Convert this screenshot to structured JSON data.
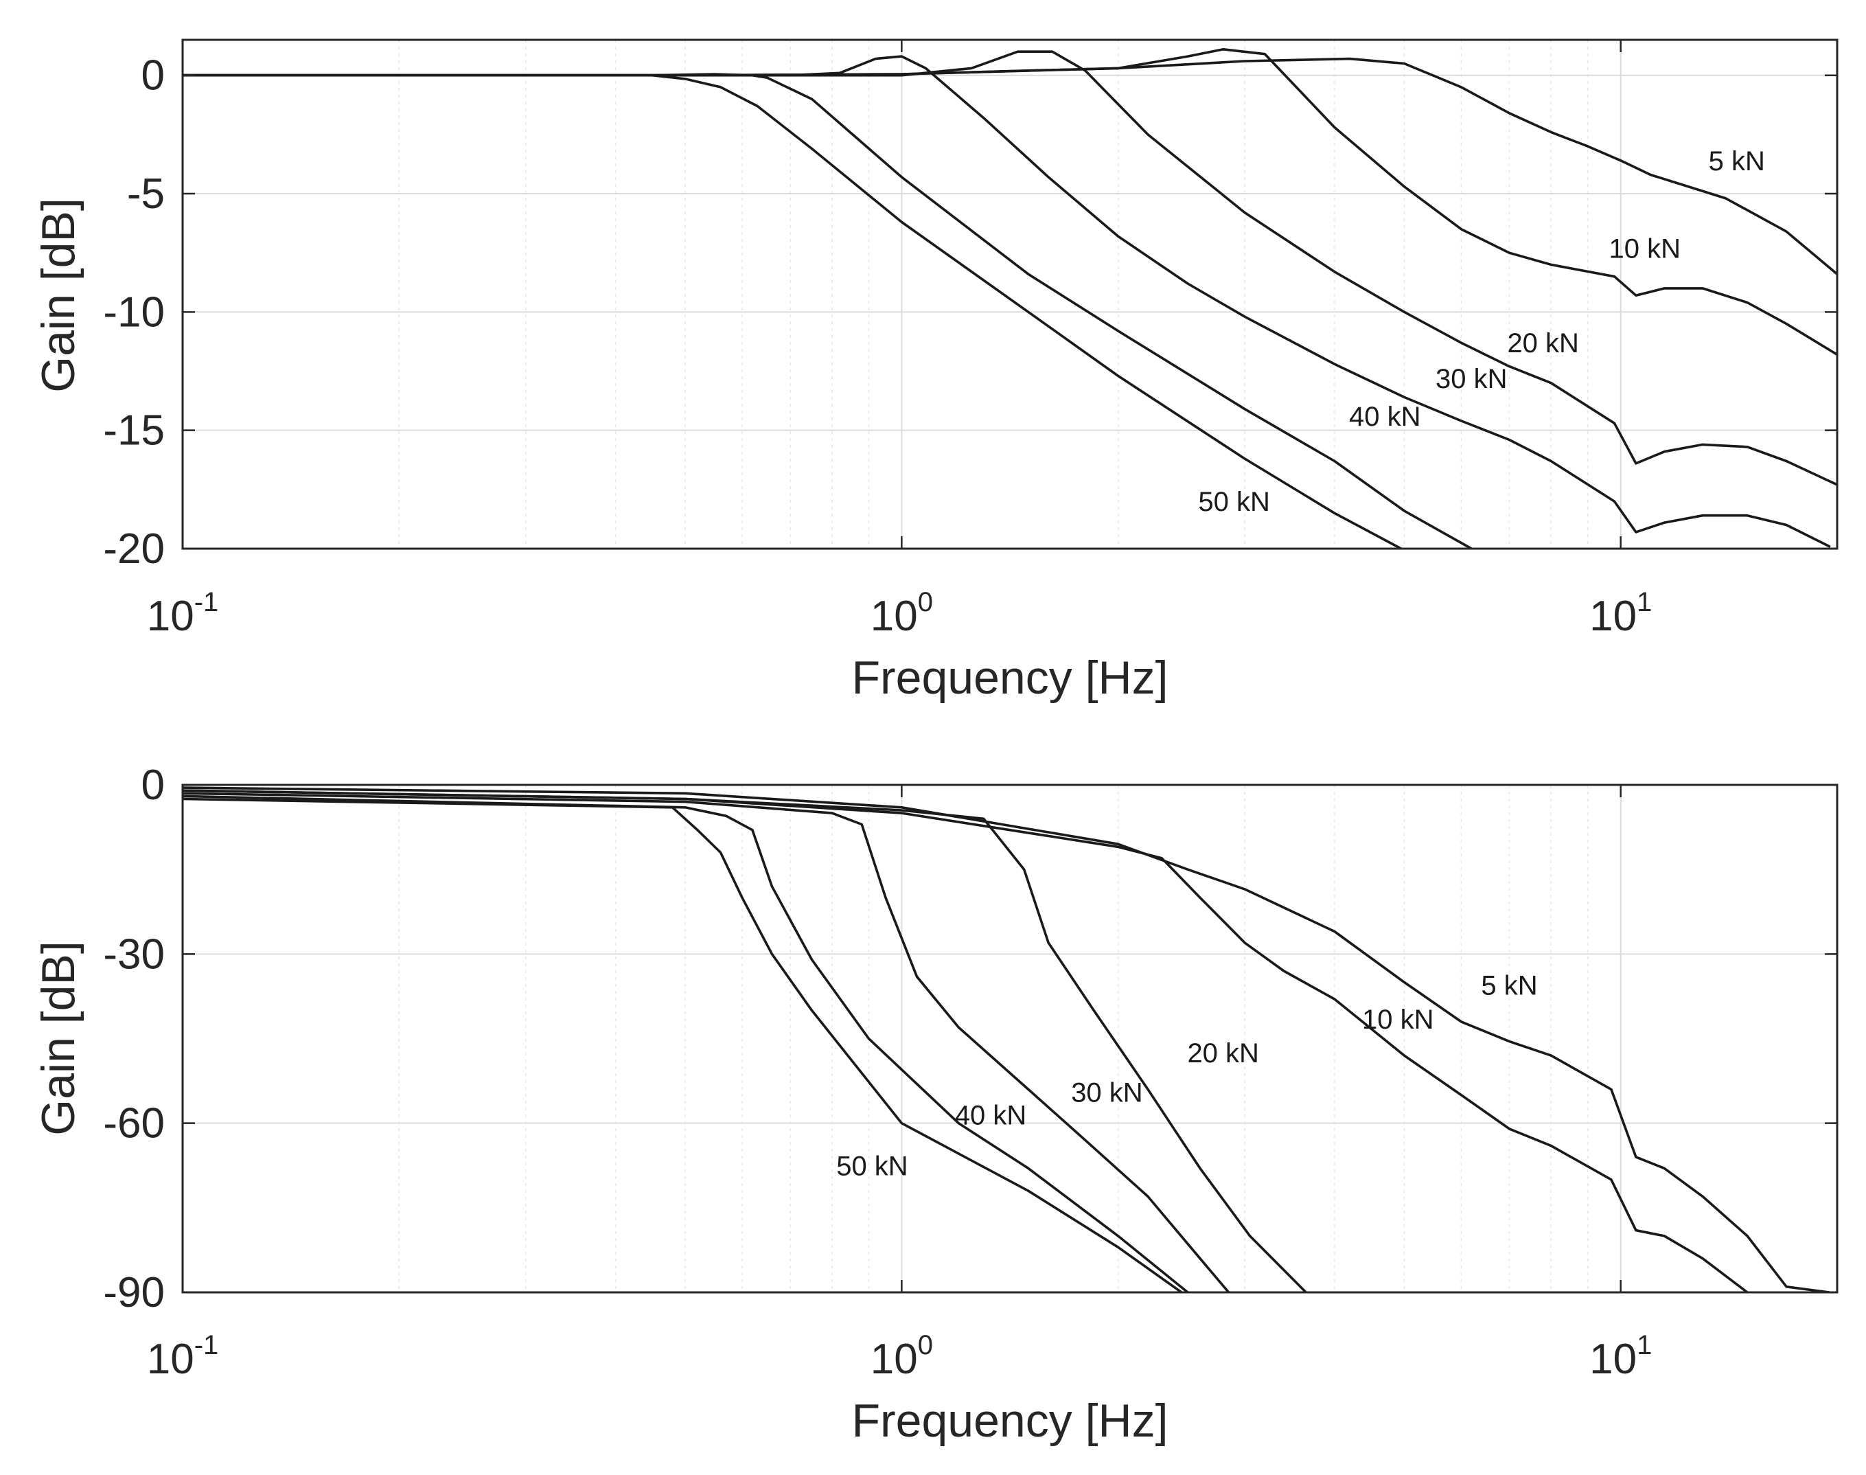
{
  "chart_data": [
    {
      "type": "line",
      "title": "",
      "xlabel": "Frequency [Hz]",
      "ylabel": "Gain [dB]",
      "xscale": "log",
      "xlim": [
        0.1,
        20
      ],
      "ylim": [
        -20,
        1.5
      ],
      "grid": true,
      "yticks": [
        {
          "value": 0,
          "label": "0"
        },
        {
          "value": -5,
          "label": "-5"
        },
        {
          "value": -10,
          "label": "-10"
        },
        {
          "value": -15,
          "label": "-15"
        },
        {
          "value": -20,
          "label": "-20"
        }
      ],
      "xticks": [
        {
          "value": 0.1,
          "base": "10",
          "exp": "-1"
        },
        {
          "value": 1,
          "base": "10",
          "exp": "0"
        },
        {
          "value": 10,
          "base": "10",
          "exp": "1"
        }
      ],
      "series": [
        {
          "name": "5 kN",
          "label": "5 kN",
          "label_at": [
            14.5,
            -3.6
          ],
          "x": [
            0.1,
            0.5,
            1,
            2,
            3,
            4.2,
            5,
            6,
            7,
            8,
            9,
            10,
            11,
            14,
            17,
            20
          ],
          "y": [
            0,
            0,
            0.05,
            0.3,
            0.6,
            0.7,
            0.5,
            -0.5,
            -1.6,
            -2.4,
            -3.0,
            -3.6,
            -4.2,
            -5.2,
            -6.6,
            -8.4
          ]
        },
        {
          "name": "10 kN",
          "label": "10 kN",
          "label_at": [
            10.8,
            -7.3
          ],
          "x": [
            0.1,
            0.5,
            1,
            1.5,
            2,
            2.5,
            2.8,
            3.2,
            4,
            5,
            6,
            7,
            8,
            9.8,
            10.5,
            11.5,
            13,
            15,
            17,
            20
          ],
          "y": [
            0,
            0,
            0.05,
            0.2,
            0.3,
            0.8,
            1.1,
            0.9,
            -2.2,
            -4.7,
            -6.5,
            -7.5,
            -8.0,
            -8.5,
            -9.3,
            -9.0,
            -9.0,
            -9.6,
            -10.5,
            -11.8
          ]
        },
        {
          "name": "20 kN",
          "label": "20 kN",
          "label_at": [
            7.8,
            -11.3
          ],
          "x": [
            0.1,
            0.5,
            1,
            1.25,
            1.45,
            1.62,
            1.8,
            2.2,
            3,
            4,
            5,
            6,
            7,
            8,
            9.8,
            10.5,
            11.5,
            13,
            15,
            17,
            20
          ],
          "y": [
            0,
            0,
            0,
            0.3,
            1.0,
            1.0,
            0.2,
            -2.5,
            -5.8,
            -8.3,
            -10.0,
            -11.3,
            -12.3,
            -13.0,
            -14.7,
            -16.4,
            -15.9,
            -15.6,
            -15.7,
            -16.3,
            -17.3
          ]
        },
        {
          "name": "30 kN",
          "label": "30 kN",
          "label_at": [
            6.2,
            -12.8
          ],
          "x": [
            0.1,
            0.5,
            0.7,
            0.82,
            0.92,
            1.0,
            1.08,
            1.3,
            1.6,
            2,
            2.5,
            3,
            4,
            5,
            6,
            7,
            8,
            9.8,
            10.5,
            11.5,
            13,
            15,
            17,
            19.5
          ],
          "y": [
            0,
            0,
            0,
            0.1,
            0.7,
            0.8,
            0.3,
            -1.8,
            -4.3,
            -6.8,
            -8.8,
            -10.2,
            -12.2,
            -13.6,
            -14.6,
            -15.4,
            -16.3,
            -18.0,
            -19.3,
            -18.9,
            -18.6,
            -18.6,
            -19.0,
            -19.9
          ]
        },
        {
          "name": "40 kN",
          "label": "40 kN",
          "label_at": [
            4.7,
            -14.4
          ],
          "x": [
            0.1,
            0.45,
            0.55,
            0.62,
            0.65,
            0.75,
            1,
            1.5,
            2,
            3,
            4,
            5,
            6.2
          ],
          "y": [
            0,
            0,
            0.05,
            0,
            -0.1,
            -1.0,
            -4.3,
            -8.4,
            -10.8,
            -14.1,
            -16.3,
            -18.4,
            -20
          ]
        },
        {
          "name": "50 kN",
          "label": "50 kN",
          "label_at": [
            2.9,
            -18.0
          ],
          "x": [
            0.1,
            0.45,
            0.5,
            0.56,
            0.63,
            0.75,
            1,
            1.5,
            2,
            3,
            4,
            4.95
          ],
          "y": [
            0,
            0,
            -0.15,
            -0.5,
            -1.3,
            -3.1,
            -6.2,
            -10.0,
            -12.7,
            -16.2,
            -18.5,
            -20
          ]
        }
      ]
    },
    {
      "type": "line",
      "title": "",
      "xlabel": "Frequency [Hz]",
      "ylabel": "Gain [dB]",
      "xscale": "log",
      "xlim": [
        0.1,
        20
      ],
      "ylim": [
        -90,
        0
      ],
      "grid": true,
      "yticks": [
        {
          "value": 0,
          "label": "0"
        },
        {
          "value": -30,
          "label": "-30"
        },
        {
          "value": -60,
          "label": "-60"
        },
        {
          "value": -90,
          "label": "-90"
        }
      ],
      "xticks": [
        {
          "value": 0.1,
          "base": "10",
          "exp": "-1"
        },
        {
          "value": 1,
          "base": "10",
          "exp": "0"
        },
        {
          "value": 10,
          "base": "10",
          "exp": "1"
        }
      ],
      "series": [
        {
          "name": "5 kN",
          "label": "5 kN",
          "label_at": [
            7.0,
            -35.5
          ],
          "x": [
            0.1,
            0.5,
            1,
            2,
            2.5,
            3,
            4,
            5,
            6,
            7,
            8,
            9.7,
            10.5,
            11.5,
            13,
            15,
            17,
            19.5
          ],
          "y": [
            -0.5,
            -1.5,
            -4,
            -10.5,
            -15,
            -18.5,
            -26,
            -35,
            -42,
            -45.5,
            -48,
            -54,
            -66,
            -68,
            -73,
            -80,
            -89,
            -90
          ]
        },
        {
          "name": "10 kN",
          "label": "10 kN",
          "label_at": [
            4.9,
            -41.5
          ],
          "x": [
            0.1,
            0.5,
            1,
            2,
            2.3,
            2.6,
            3.0,
            3.4,
            4,
            5,
            6,
            7,
            8,
            9.7,
            10.5,
            11.5,
            13,
            15
          ],
          "y": [
            -1,
            -2.5,
            -5,
            -11,
            -13,
            -20,
            -28,
            -33,
            -38,
            -48,
            -55,
            -61,
            -64,
            -70,
            -79,
            -80,
            -84,
            -90
          ]
        },
        {
          "name": "20 kN",
          "label": "20 kN",
          "label_at": [
            2.8,
            -47.5
          ],
          "x": [
            0.1,
            0.5,
            1,
            1.3,
            1.48,
            1.6,
            1.85,
            2.2,
            2.6,
            3.05,
            3.65
          ],
          "y": [
            -1,
            -2.5,
            -4.5,
            -6,
            -15,
            -28,
            -40,
            -54,
            -68,
            -80,
            -90
          ]
        },
        {
          "name": "30 kN",
          "label": "30 kN",
          "label_at": [
            1.93,
            -54.5
          ],
          "x": [
            0.1,
            0.5,
            0.8,
            0.88,
            0.95,
            1.05,
            1.2,
            1.5,
            1.8,
            2.2,
            2.6,
            2.85
          ],
          "y": [
            -1.5,
            -3,
            -5,
            -7,
            -20,
            -34,
            -43,
            -54,
            -63,
            -73,
            -84,
            -90
          ]
        },
        {
          "name": "40 kN",
          "label": "40 kN",
          "label_at": [
            1.33,
            -58.5
          ],
          "x": [
            0.1,
            0.5,
            0.57,
            0.62,
            0.66,
            0.75,
            0.9,
            1.2,
            1.5,
            2,
            2.5
          ],
          "y": [
            -2,
            -4,
            -5.5,
            -8,
            -18,
            -31,
            -45,
            -60,
            -68,
            -80,
            -90
          ]
        },
        {
          "name": "50 kN",
          "label": "50 kN",
          "label_at": [
            0.91,
            -67.5
          ],
          "x": [
            0.1,
            0.48,
            0.52,
            0.56,
            0.6,
            0.66,
            0.75,
            1,
            1.5,
            2,
            2.45
          ],
          "y": [
            -2.5,
            -4,
            -8,
            -12,
            -20,
            -30,
            -40,
            -60,
            -72,
            -82,
            -90
          ]
        }
      ]
    }
  ]
}
